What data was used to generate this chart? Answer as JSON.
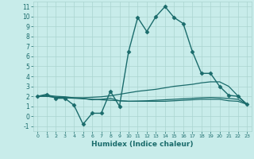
{
  "xlabel": "Humidex (Indice chaleur)",
  "xlim": [
    -0.5,
    23.5
  ],
  "ylim": [
    -1.5,
    11.5
  ],
  "yticks": [
    -1,
    0,
    1,
    2,
    3,
    4,
    5,
    6,
    7,
    8,
    9,
    10,
    11
  ],
  "xticks": [
    0,
    1,
    2,
    3,
    4,
    5,
    6,
    7,
    8,
    9,
    10,
    11,
    12,
    13,
    14,
    15,
    16,
    17,
    18,
    19,
    20,
    21,
    22,
    23
  ],
  "bg_color": "#c8ecea",
  "grid_color": "#aad4d0",
  "line_color": "#1a6b6b",
  "series": [
    {
      "x": [
        0,
        1,
        2,
        3,
        4,
        5,
        6,
        7,
        8,
        9,
        10,
        11,
        12,
        13,
        14,
        15,
        16,
        17,
        18,
        19,
        20,
        21,
        22,
        23
      ],
      "y": [
        2.0,
        2.2,
        1.8,
        1.8,
        1.1,
        -0.8,
        0.3,
        0.3,
        2.5,
        1.0,
        6.5,
        9.9,
        8.5,
        10.0,
        11.0,
        9.9,
        9.3,
        6.5,
        4.3,
        4.3,
        3.0,
        2.1,
        2.0,
        1.2
      ],
      "marker": "D",
      "markersize": 2.5,
      "linewidth": 1.0,
      "has_marker": true
    },
    {
      "x": [
        0,
        1,
        2,
        3,
        4,
        5,
        6,
        7,
        8,
        9,
        10,
        11,
        12,
        13,
        14,
        15,
        16,
        17,
        18,
        19,
        20,
        21,
        22,
        23
      ],
      "y": [
        2.0,
        2.0,
        1.9,
        1.9,
        1.85,
        1.85,
        1.9,
        1.95,
        2.05,
        2.2,
        2.35,
        2.5,
        2.6,
        2.7,
        2.85,
        3.0,
        3.1,
        3.2,
        3.35,
        3.45,
        3.45,
        3.0,
        2.05,
        1.2
      ],
      "marker": null,
      "markersize": 0,
      "linewidth": 0.9,
      "has_marker": false
    },
    {
      "x": [
        0,
        1,
        2,
        3,
        4,
        5,
        6,
        7,
        8,
        9,
        10,
        11,
        12,
        13,
        14,
        15,
        16,
        17,
        18,
        19,
        20,
        21,
        22,
        23
      ],
      "y": [
        2.0,
        2.0,
        1.9,
        1.85,
        1.8,
        1.75,
        1.7,
        1.65,
        1.6,
        1.55,
        1.5,
        1.5,
        1.5,
        1.5,
        1.5,
        1.55,
        1.6,
        1.65,
        1.7,
        1.7,
        1.7,
        1.55,
        1.5,
        1.2
      ],
      "marker": null,
      "markersize": 0,
      "linewidth": 0.9,
      "has_marker": false
    },
    {
      "x": [
        0,
        1,
        2,
        3,
        4,
        5,
        6,
        7,
        8,
        9,
        10,
        11,
        12,
        13,
        14,
        15,
        16,
        17,
        18,
        19,
        20,
        21,
        22,
        23
      ],
      "y": [
        2.0,
        2.1,
        2.0,
        1.95,
        1.85,
        1.8,
        1.65,
        1.7,
        1.8,
        1.55,
        1.5,
        1.52,
        1.55,
        1.6,
        1.65,
        1.7,
        1.75,
        1.8,
        1.85,
        1.88,
        1.85,
        1.78,
        1.7,
        1.2
      ],
      "marker": null,
      "markersize": 0,
      "linewidth": 0.9,
      "has_marker": false
    }
  ]
}
